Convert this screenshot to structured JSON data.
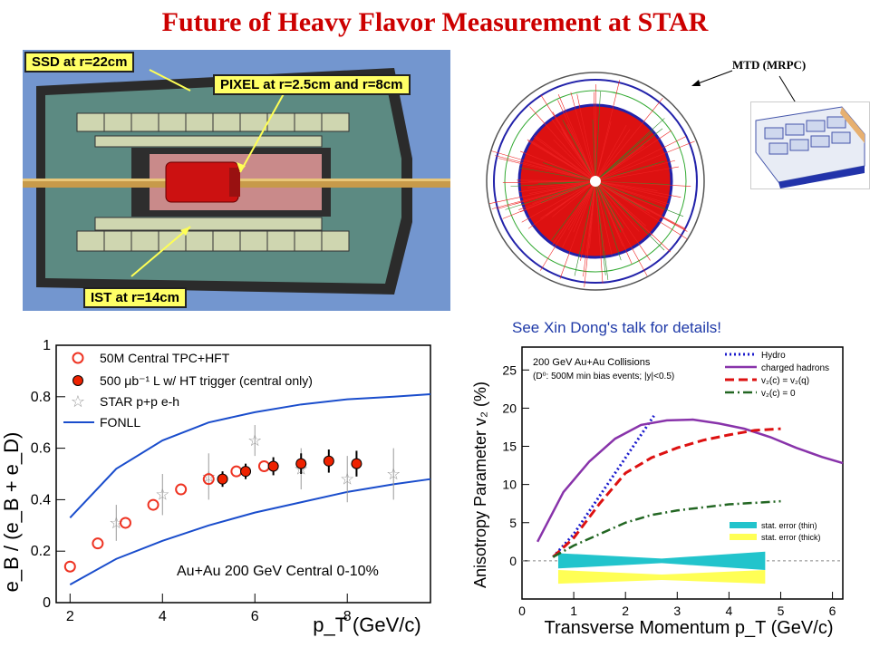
{
  "title": "Future of Heavy Flavor Measurement at STAR",
  "detector": {
    "ssd_label": "SSD at r=22cm",
    "pixel_label": "PIXEL at r=2.5cm and r=8cm",
    "ist_label": "IST at r=14cm"
  },
  "mtd_label": "MTD (MRPC)",
  "talk_note": "See Xin Dong's talk for details!",
  "left_chart": {
    "chart_data": {
      "type": "scatter",
      "ylabel": "e_B / (e_B + e_D)",
      "xlabel": "p_T (GeV/c)",
      "annotation": "Au+Au 200 GeV Central 0-10%",
      "xlim": [
        1.7,
        9.8
      ],
      "ylim": [
        0,
        1
      ],
      "x_ticks": [
        "2",
        "4",
        "6",
        "8"
      ],
      "y_ticks": [
        "0",
        "0.2",
        "0.4",
        "0.6",
        "0.8",
        "1"
      ],
      "legend": [
        "50M Central TPC+HFT",
        "500 μb⁻¹ L w/ HT trigger (central only)",
        "STAR p+p e-h",
        "FONLL"
      ],
      "series": [
        {
          "name": "50M Central TPC+HFT",
          "x": [
            2.0,
            2.6,
            3.2,
            3.8,
            4.4,
            5.0,
            5.6,
            6.2
          ],
          "y": [
            0.14,
            0.23,
            0.31,
            0.38,
            0.44,
            0.48,
            0.51,
            0.53
          ]
        },
        {
          "name": "500 μb⁻¹ L w/ HT trigger (central only)",
          "x": [
            5.3,
            5.8,
            6.4,
            7.0,
            7.6,
            8.2
          ],
          "y": [
            0.48,
            0.51,
            0.53,
            0.54,
            0.55,
            0.54
          ],
          "err": [
            0.03,
            0.03,
            0.035,
            0.04,
            0.045,
            0.05
          ]
        },
        {
          "name": "STAR p+p e-h",
          "x": [
            3.0,
            4.0,
            5.0,
            6.0,
            7.0,
            8.0,
            9.0
          ],
          "y": [
            0.31,
            0.42,
            0.49,
            0.63,
            0.52,
            0.48,
            0.5
          ],
          "err": [
            0.07,
            0.08,
            0.09,
            0.06,
            0.08,
            0.09,
            0.1
          ]
        },
        {
          "name": "FONLL",
          "kind": "band",
          "x": [
            2,
            3,
            4,
            5,
            6,
            7,
            8,
            9,
            9.8
          ],
          "upper": [
            0.33,
            0.52,
            0.63,
            0.7,
            0.74,
            0.77,
            0.79,
            0.8,
            0.81
          ],
          "lower": [
            0.07,
            0.17,
            0.24,
            0.3,
            0.35,
            0.39,
            0.43,
            0.46,
            0.48
          ]
        }
      ]
    }
  },
  "right_chart": {
    "chart_data": {
      "type": "line",
      "ylabel": "Anisotropy Parameter v₂ (%)",
      "xlabel": "Transverse Momentum p_T (GeV/c)",
      "annotation_1": "200 GeV Au+Au Collisions",
      "annotation_2": "(D⁰: 500M min bias events; |y|<0.5)",
      "xlim": [
        0,
        6.2
      ],
      "ylim": [
        -5,
        28
      ],
      "x_ticks": [
        "0",
        "1",
        "2",
        "3",
        "4",
        "5",
        "6"
      ],
      "y_ticks": [
        "0",
        "5",
        "10",
        "15",
        "20",
        "25"
      ],
      "legend": [
        "Hydro",
        "charged hadrons",
        "v₂(c) = v₂(q)",
        "v₂(c) = 0",
        "stat. error (thin)",
        "stat. error (thick)"
      ],
      "colors": {
        "hydro": "#1a1acc",
        "hadrons": "#8833aa",
        "vq": "#dd1111",
        "v0": "#226622",
        "thin": "#22c4cc",
        "thick": "#ffff55"
      },
      "series": [
        {
          "name": "Hydro",
          "x": [
            0.6,
            1.0,
            1.5,
            2.0,
            2.3,
            2.55
          ],
          "y": [
            0.5,
            3.5,
            8.5,
            13.5,
            16.5,
            19.0
          ]
        },
        {
          "name": "charged hadrons",
          "x": [
            0.3,
            0.8,
            1.3,
            1.8,
            2.3,
            2.8,
            3.3,
            3.8,
            4.3,
            4.8,
            5.3,
            5.8,
            6.2
          ],
          "y": [
            2.5,
            9,
            13,
            16,
            17.8,
            18.4,
            18.5,
            18.0,
            17.3,
            16.2,
            14.8,
            13.6,
            12.8
          ]
        },
        {
          "name": "v₂(c) = v₂(q)",
          "x": [
            0.6,
            1.0,
            1.5,
            2.0,
            2.5,
            3.0,
            3.5,
            4.0,
            4.5,
            5.0
          ],
          "y": [
            0.5,
            3,
            7.5,
            11.5,
            13.5,
            14.8,
            15.8,
            16.5,
            17.1,
            17.3
          ]
        },
        {
          "name": "v₂(c) = 0",
          "x": [
            0.6,
            1.0,
            1.5,
            2.0,
            2.5,
            3.0,
            3.5,
            4.0,
            4.5,
            5.0
          ],
          "y": [
            0.5,
            2,
            3.5,
            5,
            6,
            6.6,
            7.0,
            7.4,
            7.6,
            7.8
          ]
        }
      ]
    }
  }
}
